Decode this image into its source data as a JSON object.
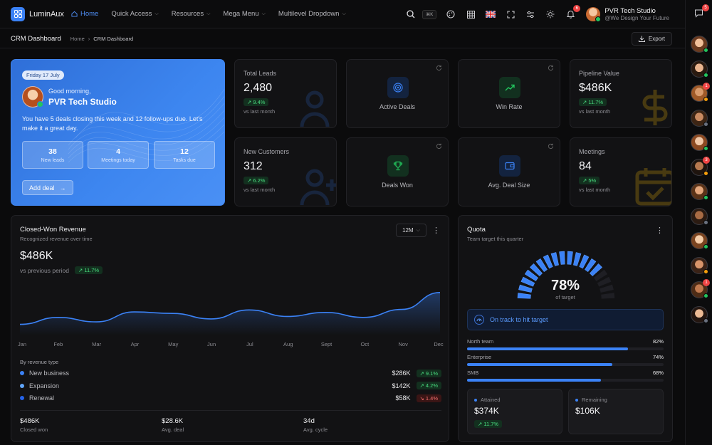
{
  "brand": {
    "name": "LuminAux",
    "accent": "#3b82f6"
  },
  "nav": [
    {
      "label": "Home",
      "active": true,
      "dropdown": false
    },
    {
      "label": "Quick Access",
      "active": false,
      "dropdown": true
    },
    {
      "label": "Resources",
      "active": false,
      "dropdown": true
    },
    {
      "label": "Mega Menu",
      "active": false,
      "dropdown": true
    },
    {
      "label": "Multilevel Dropdown",
      "active": false,
      "dropdown": true
    }
  ],
  "toolbar": {
    "search_shortcut": "⌘K",
    "notifications_count": "6",
    "icons": [
      "search-icon",
      "palette-icon",
      "grid-icon",
      "uk-flag-icon",
      "fullscreen-icon",
      "settings-sliders-icon",
      "sun-icon",
      "bell-icon"
    ]
  },
  "user": {
    "name": "PVR Tech Studio",
    "subtitle": "@We Design Your Future"
  },
  "rail": {
    "chat_count": "5",
    "avatars": [
      {
        "status": "#22c55e",
        "badge": ""
      },
      {
        "status": "#22c55e",
        "badge": ""
      },
      {
        "status": "#f59e0b",
        "badge": "1"
      },
      {
        "status": "#6b7280",
        "badge": ""
      },
      {
        "status": "#22c55e",
        "badge": ""
      },
      {
        "status": "#f59e0b",
        "badge": "3"
      },
      {
        "status": "#22c55e",
        "badge": ""
      },
      {
        "status": "#6b7280",
        "badge": ""
      },
      {
        "status": "#22c55e",
        "badge": ""
      },
      {
        "status": "#f59e0b",
        "badge": ""
      },
      {
        "status": "#22c55e",
        "badge": "1"
      },
      {
        "status": "#6b7280",
        "badge": ""
      }
    ]
  },
  "header": {
    "title": "CRM Dashboard",
    "breadcrumb": [
      "Home",
      "CRM Dashboard"
    ],
    "export_label": "Export"
  },
  "welcome": {
    "date": "Friday 17 July",
    "greeting": "Good morning,",
    "name": "PVR Tech Studio",
    "message": "You have 5 deals closing this week and 12 follow-ups due. Let's make it a great day.",
    "stats": [
      {
        "value": "38",
        "label": "New leads"
      },
      {
        "value": "4",
        "label": "Meetings today"
      },
      {
        "value": "12",
        "label": "Tasks due"
      }
    ],
    "button": "Add deal"
  },
  "kpis": {
    "total_leads": {
      "label": "Total Leads",
      "value": "2,480",
      "change": "9.4%",
      "sub": "vs last month"
    },
    "new_customers": {
      "label": "New Customers",
      "value": "312",
      "change": "6.2%",
      "sub": "vs last month"
    },
    "pipeline": {
      "label": "Pipeline Value",
      "value": "$486K",
      "change": "11.7%",
      "sub": "vs last month"
    },
    "meetings": {
      "label": "Meetings",
      "value": "84",
      "change": "5%",
      "sub": "vs last month"
    }
  },
  "icon_cards": {
    "active_deals": {
      "label": "Active Deals",
      "color": "#3b82f6"
    },
    "win_rate": {
      "label": "Win Rate",
      "color": "#22c55e"
    },
    "deals_won": {
      "label": "Deals Won",
      "color": "#22c55e"
    },
    "avg_deal": {
      "label": "Avg. Deal Size",
      "color": "#3b82f6"
    }
  },
  "revenue": {
    "title": "Closed-Won Revenue",
    "subtitle": "Recognized revenue over time",
    "value": "$486K",
    "compare_label": "vs previous period",
    "change": "11.7%",
    "range": "12M",
    "months": [
      "Jan",
      "Feb",
      "Mar",
      "Apr",
      "May",
      "Jun",
      "Jul",
      "Aug",
      "Sept",
      "Oct",
      "Nov",
      "Dec"
    ],
    "by_type_label": "By revenue type",
    "types": [
      {
        "name": "New business",
        "amount": "$286K",
        "change": "9.1%",
        "dir": "up",
        "color": "#3b82f6"
      },
      {
        "name": "Expansion",
        "amount": "$142K",
        "change": "4.2%",
        "dir": "up",
        "color": "#60a5fa"
      },
      {
        "name": "Renewal",
        "amount": "$58K",
        "change": "1.4%",
        "dir": "down",
        "color": "#2563eb"
      }
    ],
    "footer": [
      {
        "value": "$486K",
        "label": "Closed won"
      },
      {
        "value": "$28.6K",
        "label": "Avg. deal"
      },
      {
        "value": "34d",
        "label": "Avg. cycle"
      }
    ]
  },
  "chart_data": {
    "type": "area",
    "x": [
      "Jan",
      "Feb",
      "Mar",
      "Apr",
      "May",
      "Jun",
      "Jul",
      "Aug",
      "Sept",
      "Oct",
      "Nov",
      "Dec"
    ],
    "values": [
      0.22,
      0.36,
      0.27,
      0.47,
      0.44,
      0.33,
      0.51,
      0.38,
      0.46,
      0.36,
      0.52,
      0.86
    ],
    "ylim": [
      0,
      1
    ],
    "grid": false,
    "legend": "none"
  },
  "quota": {
    "title": "Quota",
    "subtitle": "Team target this quarter",
    "percent": "78%",
    "percent_value": 0.78,
    "of_label": "of target",
    "status": "On track to hit target",
    "rows": [
      {
        "label": "North team",
        "pct": "82%",
        "value": 0.82
      },
      {
        "label": "Enterprise",
        "pct": "74%",
        "value": 0.74
      },
      {
        "label": "SMB",
        "pct": "68%",
        "value": 0.68
      }
    ],
    "attained": {
      "label": "Attained",
      "value": "$374K",
      "change": "11.7%"
    },
    "remaining": {
      "label": "Remaining",
      "value": "$106K"
    }
  }
}
